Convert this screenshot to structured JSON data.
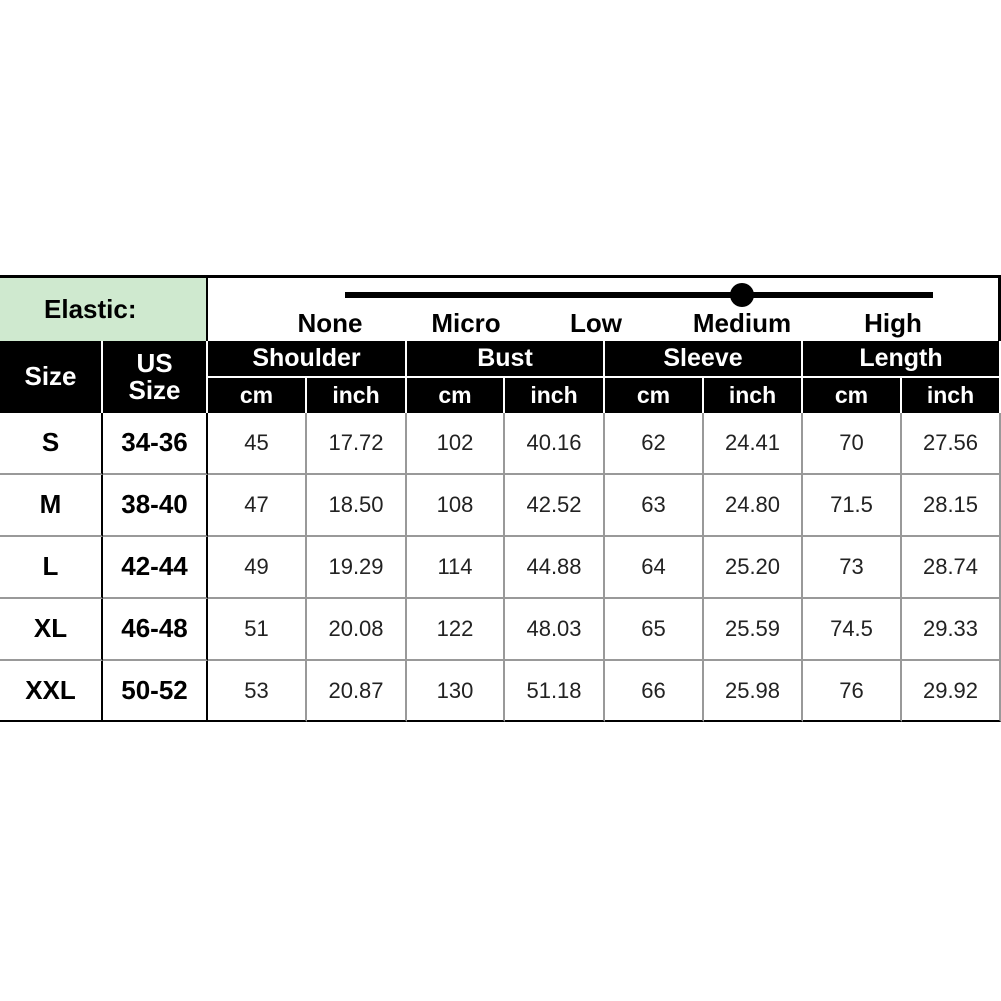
{
  "elastic": {
    "label": "Elastic:",
    "levels": [
      "None",
      "Micro",
      "Low",
      "Medium",
      "High"
    ],
    "selected": 3
  },
  "table": {
    "headers": [
      "Size",
      "US Size"
    ],
    "groups": [
      "Shoulder",
      "Bust",
      "Sleeve",
      "Length"
    ],
    "units": [
      "cm",
      "inch"
    ],
    "rows": [
      [
        "S",
        "34-36",
        "45",
        "17.72",
        "102",
        "40.16",
        "62",
        "24.41",
        "70",
        "27.56"
      ],
      [
        "M",
        "38-40",
        "47",
        "18.50",
        "108",
        "42.52",
        "63",
        "24.80",
        "71.5",
        "28.15"
      ],
      [
        "L",
        "42-44",
        "49",
        "19.29",
        "114",
        "44.88",
        "64",
        "25.20",
        "73",
        "28.74"
      ],
      [
        "XL",
        "46-48",
        "51",
        "20.08",
        "122",
        "48.03",
        "65",
        "25.59",
        "74.5",
        "29.33"
      ],
      [
        "XXL",
        "50-52",
        "53",
        "20.87",
        "130",
        "51.18",
        "66",
        "25.98",
        "76",
        "29.92"
      ]
    ]
  }
}
